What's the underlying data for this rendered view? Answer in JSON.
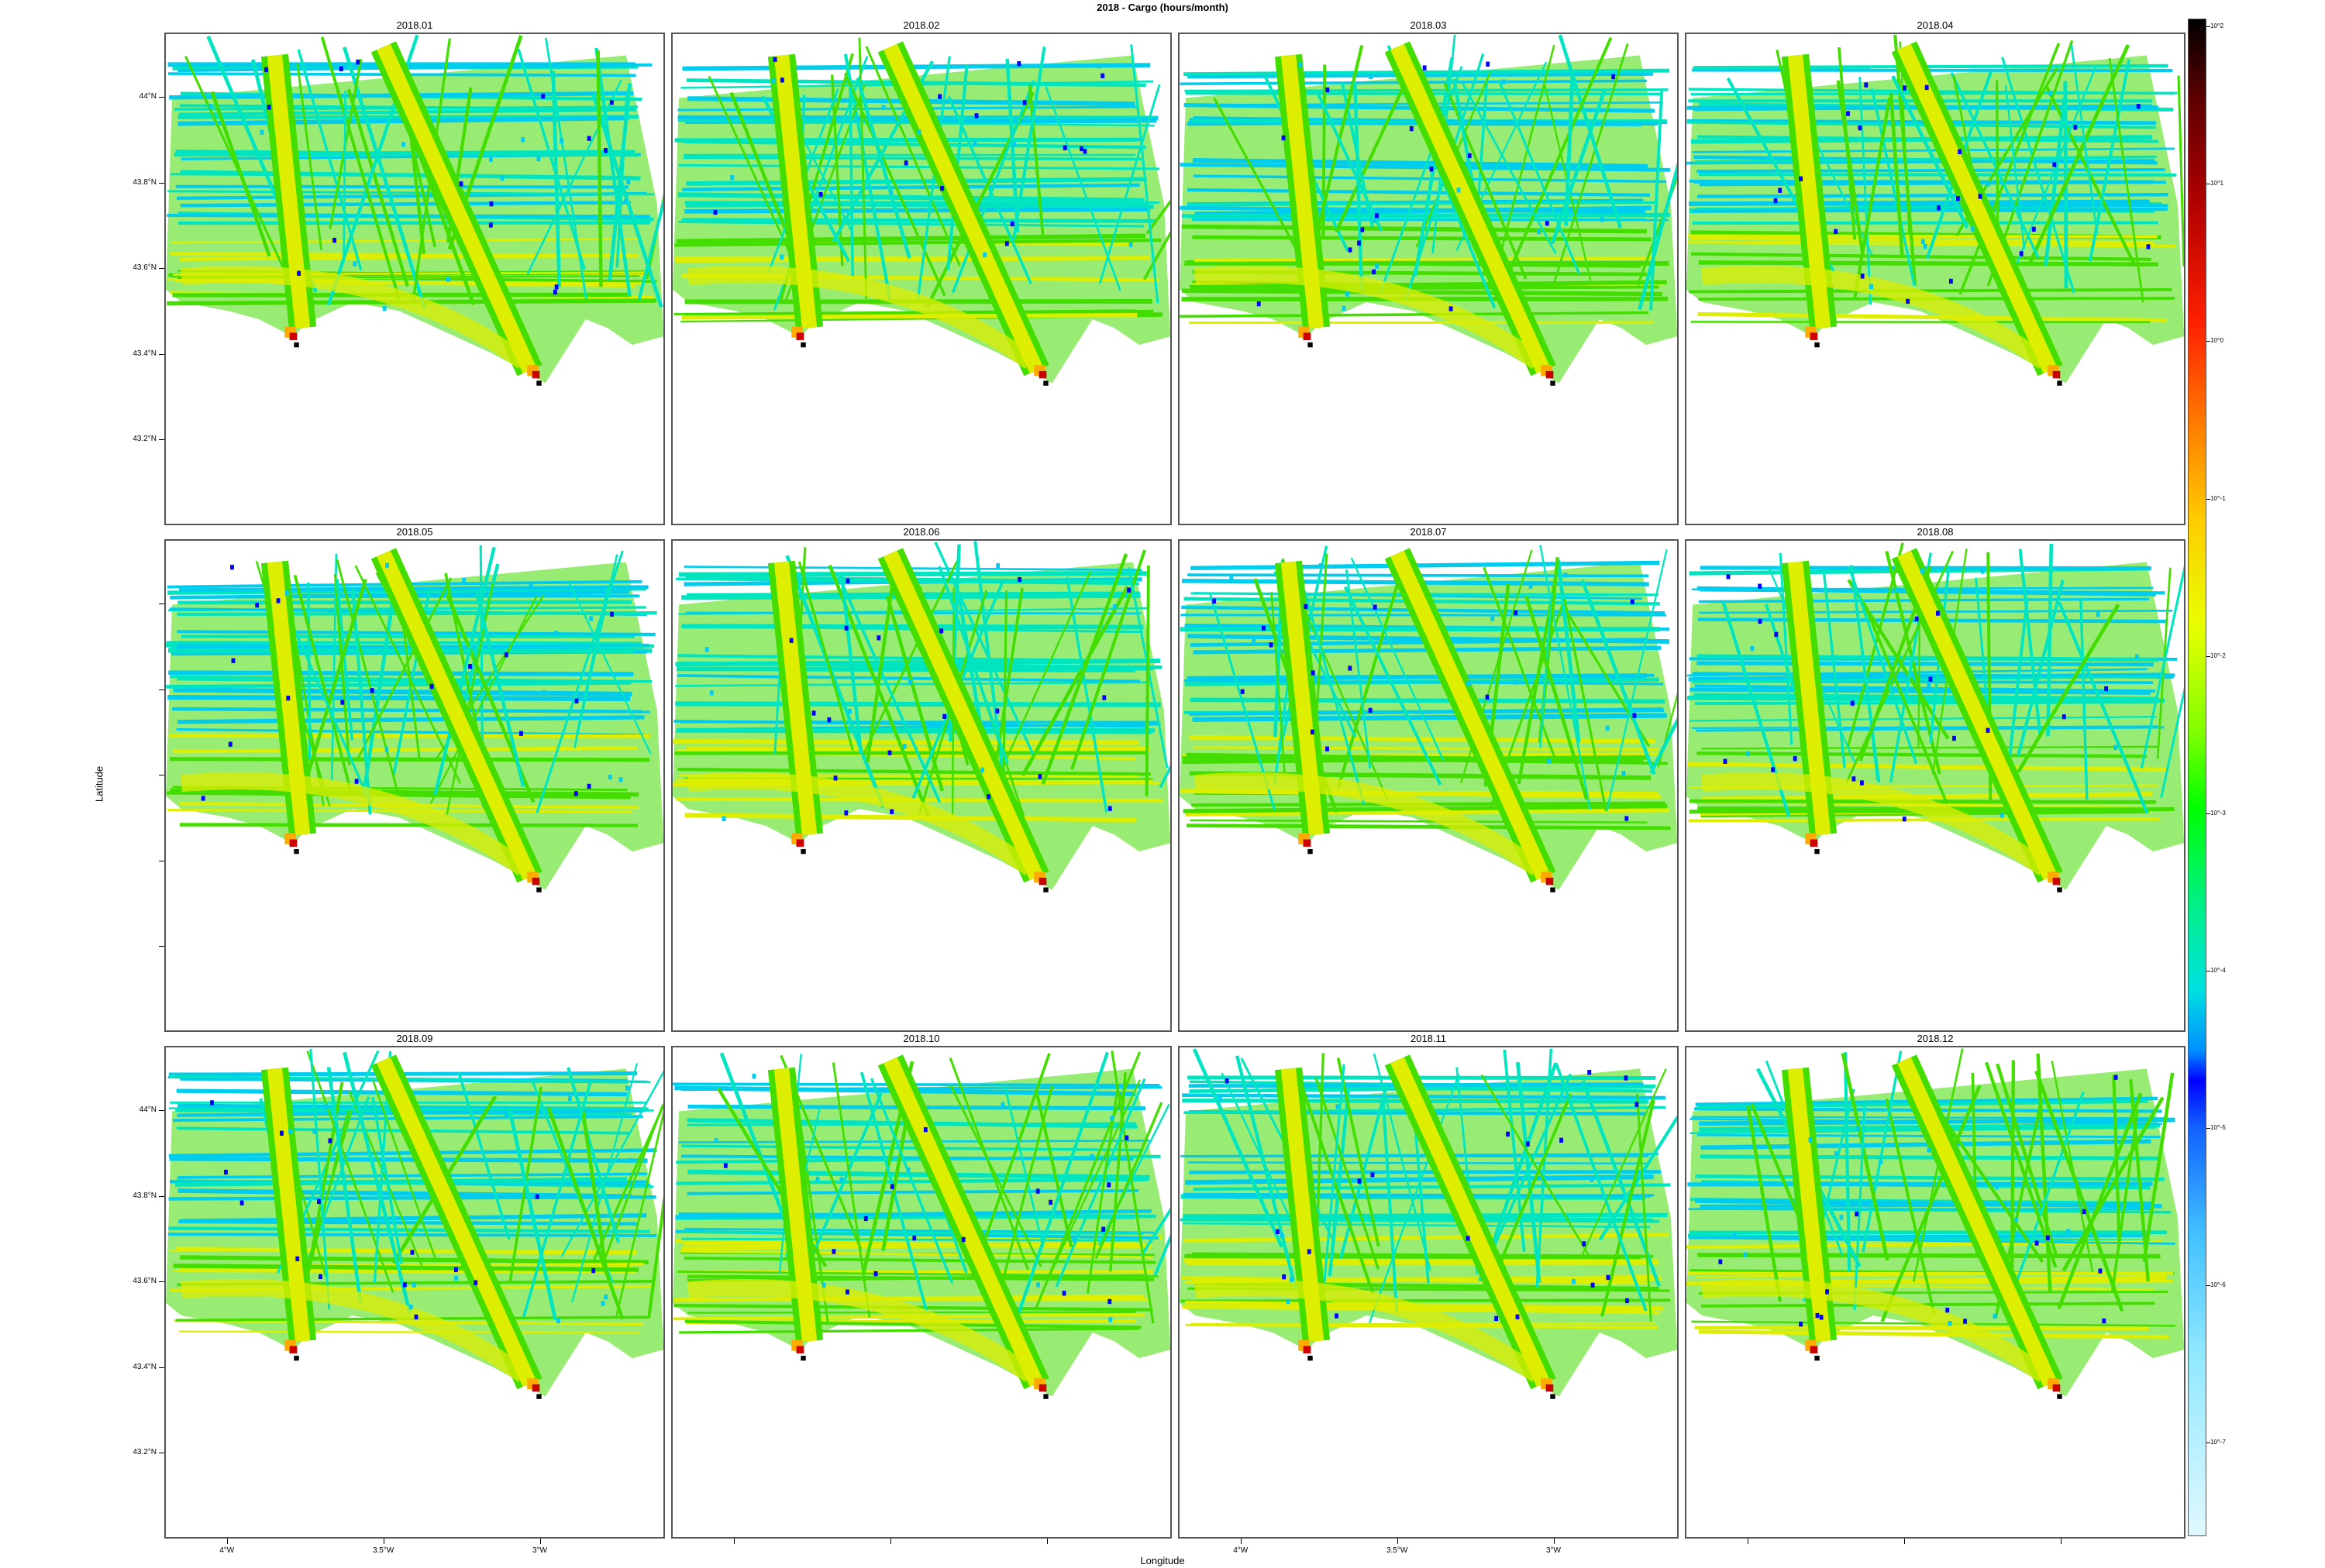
{
  "title": "2018 - Cargo (hours/month)",
  "chart_data": {
    "type": "heatmap",
    "title": "2018 - Cargo (hours/month)",
    "xlabel": "Longitude",
    "ylabel": "Latitude",
    "panels": [
      "2018.01",
      "2018.02",
      "2018.03",
      "2018.04",
      "2018.05",
      "2018.06",
      "2018.07",
      "2018.08",
      "2018.09",
      "2018.10",
      "2018.11",
      "2018.12"
    ],
    "layout": {
      "rows": 3,
      "cols": 4
    },
    "xlim": [
      -4.2,
      -2.6
    ],
    "ylim": [
      43.0,
      44.15
    ],
    "x_ticks": [
      {
        "value": -4.0,
        "label": "4°W"
      },
      {
        "value": -3.5,
        "label": "3.5°W"
      },
      {
        "value": -3.0,
        "label": "3°W"
      }
    ],
    "y_ticks": [
      {
        "value": 43.2,
        "label": "43.2°N"
      },
      {
        "value": 43.4,
        "label": "43.4°N"
      },
      {
        "value": 43.6,
        "label": "43.6°N"
      },
      {
        "value": 43.8,
        "label": "43.8°N"
      },
      {
        "value": 44.0,
        "label": "44°N"
      }
    ],
    "colorbar": {
      "scale": "log",
      "ticks": [
        "10^2",
        "10^1",
        "10^0",
        "10^-1",
        "10^-2",
        "10^-3",
        "10^-4",
        "10^-5",
        "10^-6",
        "10^-7"
      ]
    },
    "colors": {
      "very_high": "#000000",
      "high": "#cc0000",
      "mid_high": "#ffaa00",
      "mid": "#ddee00",
      "low": "#44dd00",
      "very_low": "#00e5c0",
      "minimal": "#00ccee",
      "outlier": "#0000ff"
    },
    "ports": [
      {
        "lon": -3.8,
        "lat": 43.45
      },
      {
        "lon": -3.02,
        "lat": 43.36
      }
    ]
  }
}
